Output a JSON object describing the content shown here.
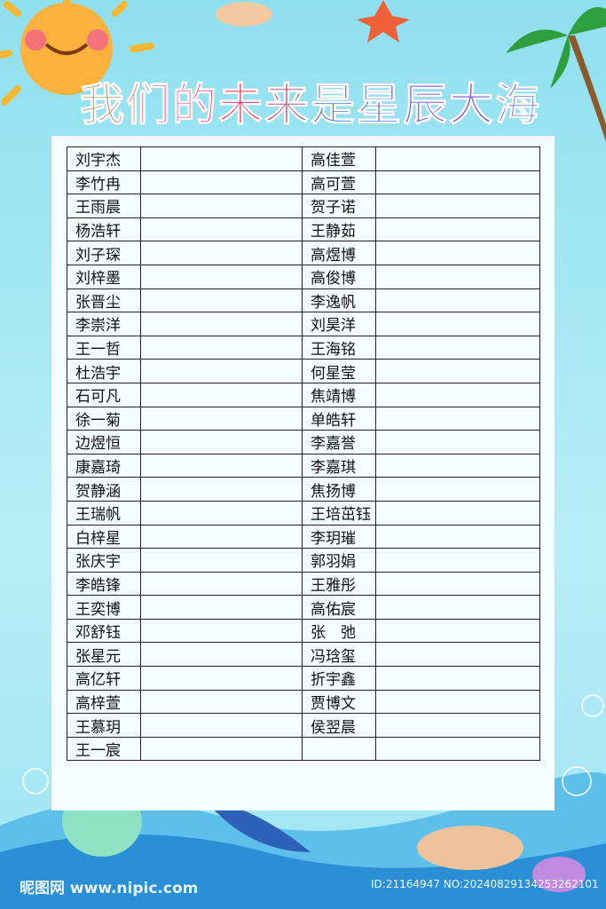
{
  "title": "我们的未来是星辰大海",
  "table": {
    "left": [
      "刘宇杰",
      "李竹冉",
      "王雨晨",
      "杨浩轩",
      "刘子琛",
      "刘梓墨",
      "张晋尘",
      "李崇洋",
      "王一哲",
      "杜浩宇",
      "石可凡",
      "徐一菊",
      "边煜恒",
      "康嘉琦",
      "贺静涵",
      "王瑞帆",
      "白梓星",
      "张庆宇",
      "李皓锋",
      "王奕博",
      "邓舒钰",
      "张星元",
      "高亿轩",
      "高梓萱",
      "王慕玥",
      "王一宸"
    ],
    "right": [
      "高佳萱",
      "高可萱",
      "贺子诺",
      "王静茹",
      "高煜博",
      "高俊博",
      "李逸帆",
      "刘昊洋",
      "王海铭",
      "何星莹",
      "焦靖博",
      "单皓轩",
      "李嘉誉",
      "李嘉琪",
      "焦扬博",
      "王培茁钰",
      "李玥璀",
      "郭羽娟",
      "王雅彤",
      "高佑宸",
      "张　弛",
      "冯琀玺",
      "折宇鑫",
      "贾博文",
      "侯翌晨"
    ]
  },
  "watermark": {
    "site": "昵图网 www.nipic.com",
    "id": "ID:21164947 NO:20240829134253262101"
  }
}
